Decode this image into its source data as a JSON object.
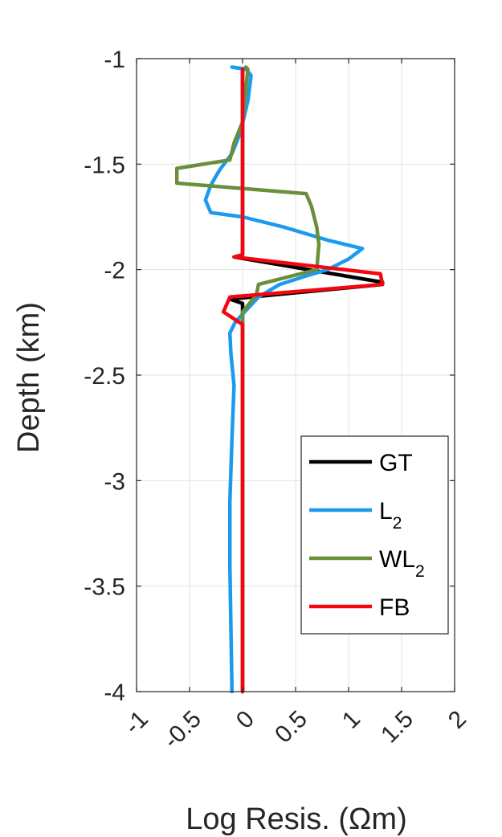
{
  "chart_data": {
    "type": "line",
    "xlabel": "Log Resis. (Ωm)",
    "ylabel": "Depth (km)",
    "xlim": [
      -1,
      2
    ],
    "ylim": [
      -4,
      -1
    ],
    "x_ticks": [
      "-1",
      "-0.5",
      "0",
      "0.5",
      "1",
      "1.5",
      "2"
    ],
    "y_ticks": [
      "-1",
      "-1.5",
      "-2",
      "-2.5",
      "-3",
      "-3.5",
      "-4"
    ],
    "grid": true,
    "legend_position": "bottom-right",
    "series": [
      {
        "name": "GT",
        "label_main": "GT",
        "label_sub": "",
        "color": "#000000",
        "points": [
          [
            0.0,
            -1.05
          ],
          [
            0.0,
            -1.93
          ],
          [
            -0.08,
            -1.94
          ],
          [
            1.32,
            -2.06
          ],
          [
            1.32,
            -2.07
          ],
          [
            -0.12,
            -2.14
          ],
          [
            0.0,
            -2.16
          ],
          [
            0.0,
            -4.0
          ]
        ]
      },
      {
        "name": "L2",
        "label_main": "L",
        "label_sub": "2",
        "color": "#1a9bed",
        "points": [
          [
            -0.1,
            -1.04
          ],
          [
            0.03,
            -1.05
          ],
          [
            0.08,
            -1.08
          ],
          [
            0.05,
            -1.2
          ],
          [
            -0.02,
            -1.35
          ],
          [
            -0.1,
            -1.45
          ],
          [
            -0.22,
            -1.53
          ],
          [
            -0.3,
            -1.6
          ],
          [
            -0.35,
            -1.67
          ],
          [
            -0.3,
            -1.73
          ],
          [
            0.0,
            -1.75
          ],
          [
            0.4,
            -1.8
          ],
          [
            0.8,
            -1.86
          ],
          [
            1.13,
            -1.9
          ],
          [
            1.0,
            -1.95
          ],
          [
            0.8,
            -2.0
          ],
          [
            0.6,
            -2.03
          ],
          [
            0.35,
            -2.07
          ],
          [
            0.15,
            -2.13
          ],
          [
            0.02,
            -2.2
          ],
          [
            -0.07,
            -2.25
          ],
          [
            -0.12,
            -2.3
          ],
          [
            -0.11,
            -2.4
          ],
          [
            -0.08,
            -2.55
          ],
          [
            -0.1,
            -2.8
          ],
          [
            -0.12,
            -3.1
          ],
          [
            -0.12,
            -3.4
          ],
          [
            -0.11,
            -3.7
          ],
          [
            -0.1,
            -4.0
          ]
        ]
      },
      {
        "name": "WL2",
        "label_main": "WL",
        "label_sub": "2",
        "color": "#6a8f3b",
        "points": [
          [
            0.03,
            -1.04
          ],
          [
            0.05,
            -1.05
          ],
          [
            0.0,
            -1.3
          ],
          [
            -0.08,
            -1.4
          ],
          [
            -0.12,
            -1.48
          ],
          [
            -0.62,
            -1.52
          ],
          [
            -0.62,
            -1.59
          ],
          [
            0.6,
            -1.64
          ],
          [
            0.65,
            -1.7
          ],
          [
            0.7,
            -1.8
          ],
          [
            0.72,
            -1.88
          ],
          [
            0.7,
            -2.0
          ],
          [
            0.15,
            -2.07
          ],
          [
            0.13,
            -2.12
          ],
          [
            0.0,
            -2.2
          ],
          [
            0.0,
            -4.0
          ]
        ]
      },
      {
        "name": "FB",
        "label_main": "FB",
        "label_sub": "",
        "color": "#f5050f",
        "points": [
          [
            0.0,
            -1.05
          ],
          [
            0.0,
            -1.93
          ],
          [
            -0.08,
            -1.94
          ],
          [
            1.3,
            -2.02
          ],
          [
            1.32,
            -2.07
          ],
          [
            -0.12,
            -2.13
          ],
          [
            -0.18,
            -2.2
          ],
          [
            0.0,
            -2.26
          ],
          [
            0.0,
            -4.0
          ]
        ]
      }
    ]
  }
}
